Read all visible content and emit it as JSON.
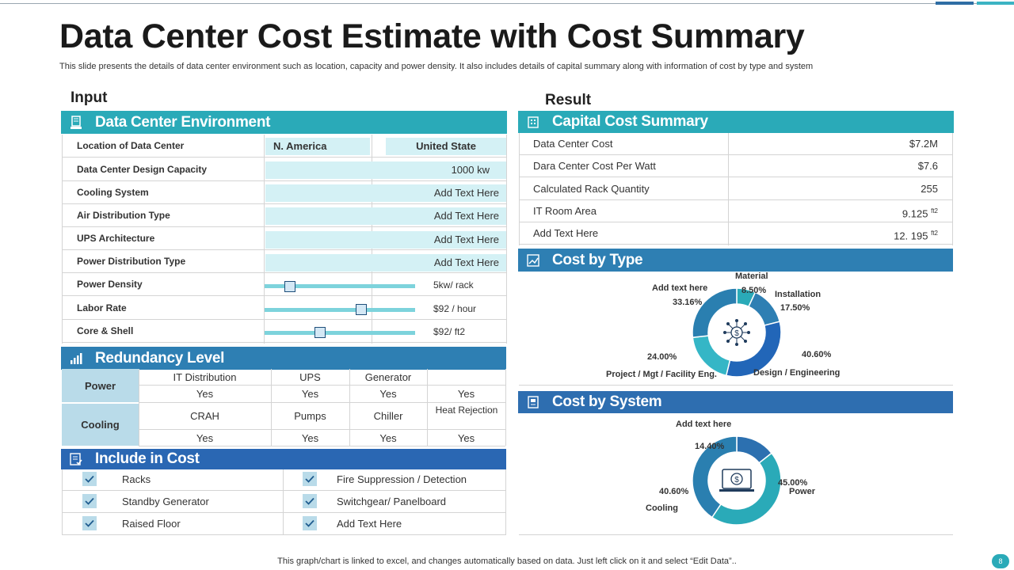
{
  "title": "Data Center Cost Estimate with Cost Summary",
  "subtitle": "This slide presents the details of data center environment such as location, capacity and power density. It also includes details of capital summary along with information of cost by type  and system",
  "input_label": "Input",
  "result_label": "Result",
  "env": {
    "header": "Data Center Environment",
    "location_label": "Location of Data Center",
    "location_values": [
      "N. America",
      "United State"
    ],
    "rows": [
      {
        "label": "Data Center Design Capacity",
        "value": "1000  kw"
      },
      {
        "label": "Cooling  System",
        "value": "Add Text Here"
      },
      {
        "label": "Air Distribution Type",
        "value": "Add Text Here"
      },
      {
        "label": "UPS Architecture",
        "value": "Add Text Here"
      },
      {
        "label": "Power Distribution  Type",
        "value": "Add Text Here"
      }
    ],
    "sliders": [
      {
        "label": "Power Density",
        "value": "5kw/ rack",
        "level": 0.17
      },
      {
        "label": "Labor Rate",
        "value": "$92 / hour",
        "level": 0.64
      },
      {
        "label": "Core & Shell",
        "value": "$92/ ft2",
        "level": 0.37
      }
    ]
  },
  "redundancy": {
    "header": "Redundancy Level",
    "power_label": "Power",
    "cooling_label": "Cooling",
    "power_cols": [
      "IT Distribution",
      "UPS",
      "Generator",
      ""
    ],
    "power_vals": [
      "Yes",
      "Yes",
      "Yes",
      "Yes"
    ],
    "cooling_cols": [
      "CRAH",
      "Pumps",
      "Chiller",
      "Heat Rejection"
    ],
    "cooling_vals": [
      "Yes",
      "Yes",
      "Yes",
      "Yes"
    ]
  },
  "include": {
    "header": "Include in Cost",
    "left": [
      "Racks",
      "Standby Generator",
      "Raised Floor"
    ],
    "right": [
      "Fire Suppression / Detection",
      "Switchgear/ Panelboard",
      "Add Text Here"
    ]
  },
  "capital": {
    "header": "Capital Cost Summary",
    "rows": [
      {
        "label": "Data Center Cost",
        "value": "$7.2M",
        "unit": ""
      },
      {
        "label": "Dara Center Cost Per Watt",
        "value": "$7.6",
        "unit": ""
      },
      {
        "label": "Calculated Rack Quantity",
        "value": "255",
        "unit": ""
      },
      {
        "label": "IT Room Area",
        "value": "9.125",
        "unit": "ft2"
      },
      {
        "label": "Add Text Here",
        "value": "12. 195",
        "unit": "ft2"
      }
    ]
  },
  "cost_by_type": {
    "header": "Cost by Type",
    "labels": {
      "material": "Material",
      "installation": "Installation",
      "design": "Design / Engineering",
      "project": "Project / Mgt / Facility Eng.",
      "addtext": "Add text here"
    },
    "pct": {
      "material": "8.50%",
      "installation": "17.50%",
      "design": "40.60%",
      "project": "24.00%",
      "addtext": "33.16%"
    }
  },
  "cost_by_system": {
    "header": "Cost by System",
    "labels": {
      "addtext": "Add text here",
      "power": "Power",
      "cooling": "Cooling"
    },
    "pct": {
      "addtext": "14.40%",
      "power": "45.00%",
      "cooling": "40.60%"
    }
  },
  "chart_data": [
    {
      "type": "pie",
      "title": "Cost by Type",
      "categories": [
        "Material",
        "Installation",
        "Design / Engineering",
        "Project / Mgt / Facility Eng.",
        "Add text here"
      ],
      "values": [
        8.5,
        17.5,
        40.6,
        24.0,
        33.16
      ],
      "colors": [
        "#2aaab8",
        "#2e7fb3",
        "#2266b8",
        "#35b6c6",
        "#2a7fb0"
      ]
    },
    {
      "type": "pie",
      "title": "Cost by System",
      "categories": [
        "Add text here",
        "Power",
        "Cooling"
      ],
      "values": [
        14.4,
        45.0,
        40.6
      ],
      "colors": [
        "#2c70b0",
        "#2aaab8",
        "#2a7fb0"
      ]
    }
  ],
  "footer": "This graph/chart is linked to excel,  and changes automatically based on data. Just left click on it and select “Edit Data”..",
  "page_number": "8"
}
